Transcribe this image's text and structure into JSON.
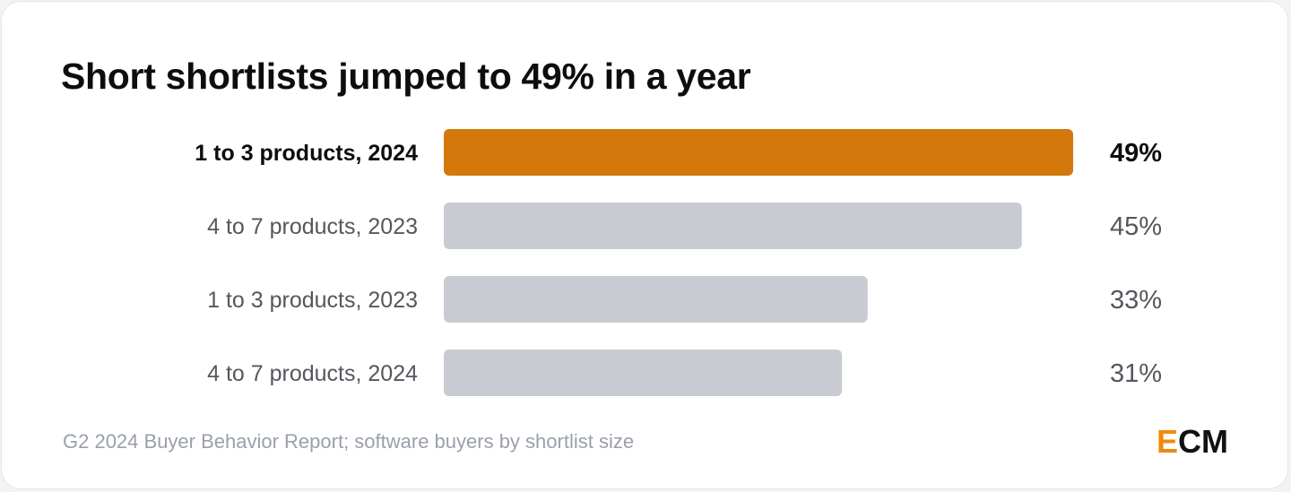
{
  "title": "Short shortlists jumped to 49% in a year",
  "footer": "G2 2024 Buyer Behavior Report; software buyers by shortlist size",
  "logo": {
    "first": "E",
    "rest": "CM"
  },
  "colors": {
    "highlight_bar": "#d4780b",
    "default_bar": "#c8cbd2",
    "highlight_text": "#0d0d0f",
    "default_text": "#55575d",
    "logo_accent": "#ef8a0c"
  },
  "chart_data": {
    "type": "bar",
    "orientation": "horizontal",
    "title": "Short shortlists jumped to 49% in a year",
    "categories": [
      "1 to 3 products, 2024",
      "4 to 7 products, 2023",
      "1 to 3 products, 2023",
      "4 to 7 products, 2024"
    ],
    "values": [
      49,
      45,
      33,
      31
    ],
    "value_labels": [
      "49%",
      "45%",
      "33%",
      "31%"
    ],
    "highlighted_index": 0,
    "unit": "%",
    "xlim": [
      0,
      49
    ],
    "grid": false,
    "legend": "none"
  }
}
